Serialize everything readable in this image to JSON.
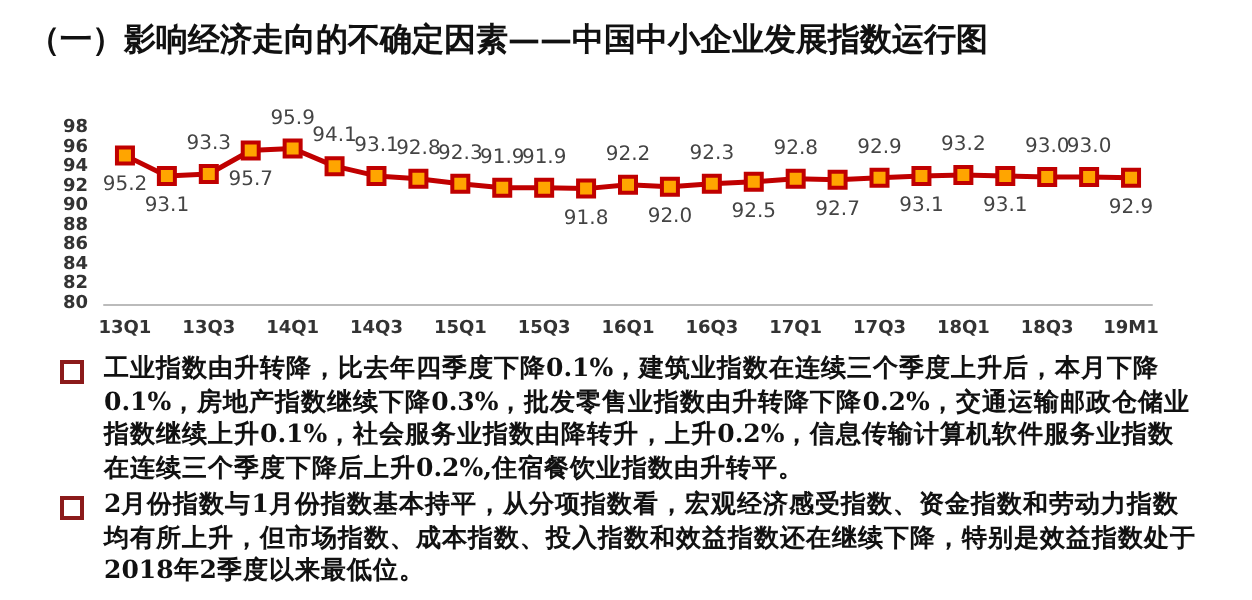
{
  "chart_data": {
    "type": "line",
    "title": "（一）影响经济走向的不确定因素——中国中小企业发展指数运行图",
    "categories": [
      "13Q1",
      null,
      "13Q3",
      null,
      "14Q1",
      null,
      "14Q3",
      null,
      "15Q1",
      null,
      "15Q3",
      null,
      "16Q1",
      null,
      "16Q3",
      null,
      "17Q1",
      null,
      "17Q3",
      null,
      "18Q1",
      null,
      "18Q3",
      null,
      "19M1"
    ],
    "series": [
      {
        "color": "#c00000",
        "values": [
          95.2,
          93.1,
          93.3,
          95.7,
          95.9,
          94.1,
          93.1,
          92.8,
          92.3,
          91.9,
          91.9,
          91.8,
          92.2,
          92.0,
          92.3,
          92.5,
          92.8,
          92.7,
          92.9,
          93.1,
          93.2,
          93.1,
          93.0,
          93.0,
          92.9
        ]
      }
    ],
    "ylim": [
      80,
      98
    ],
    "yticks": [
      80,
      82,
      84,
      86,
      88,
      90,
      92,
      94,
      96,
      98
    ],
    "grid": false,
    "marker": "square",
    "line_style": "solid",
    "value_labels": [
      "95.2",
      "93.1",
      "93.3",
      "95.7",
      "95.9",
      "94.1",
      "93.1",
      "92.8",
      "92.3",
      "91.9",
      "91.9",
      "91.8",
      "92.2",
      "92.0",
      "92.3",
      "92.5",
      "92.8",
      "92.7",
      "92.9",
      "93.1",
      "93.2",
      "93.1",
      "93.0",
      "93.0",
      "92.9"
    ],
    "annotations": [
      "工业指数由升转降，比去年四季度下降0.1%，建筑业指数在连续三个季度上升后，本月下降0.1%，房地产指数继续下降0.3%，批发零售业指数由升转降下降0.2%，交通运输邮政仓储业指数继续上升0.1%，社会服务业指数由降转升，上升0.2%，信息传输计算机软件服务业指数在连续三个季度下降后上升0.2%,住宿餐饮业指数由升转平。",
      "2月份指数与1月份指数基本持平，从分项指数看，宏观经济感受指数、资金指数和劳动力指数均有所上升，但市场指数、成本指数、投入指数和效益指数还在继续下降，特别是效益指数处于2018年2季度以来最低位。"
    ]
  }
}
